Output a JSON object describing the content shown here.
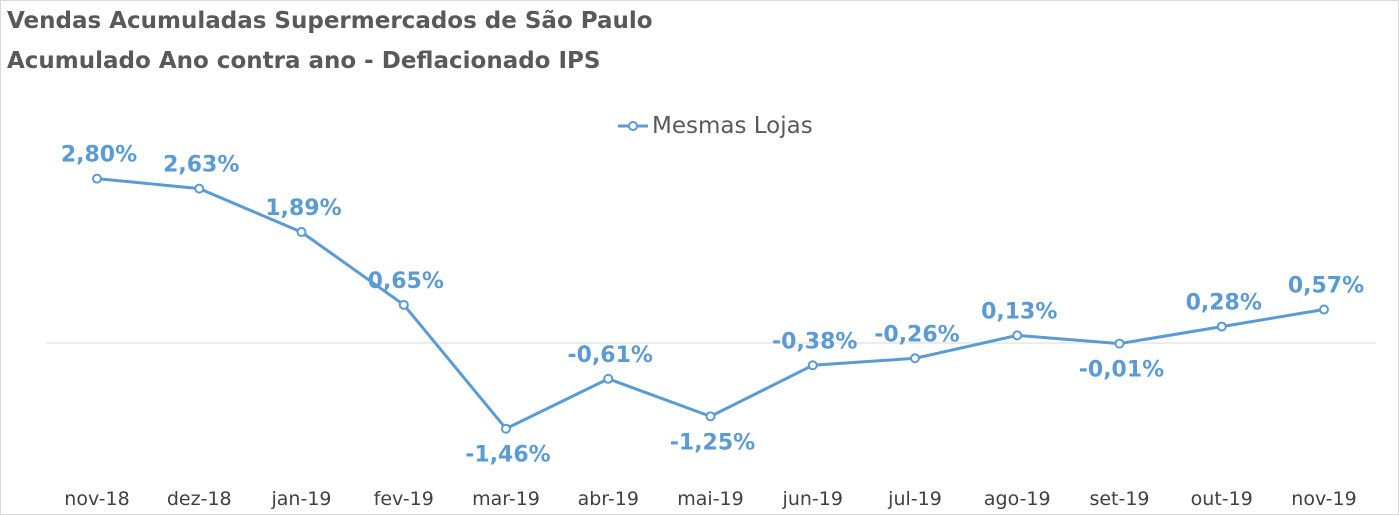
{
  "colors": {
    "series": "#5b9bd5",
    "title": "#595959",
    "axis": "#d9d9d9",
    "ticks": "#404040"
  },
  "chart_data": {
    "type": "line",
    "title": "Vendas Acumuladas Supermercados de São Paulo",
    "subtitle": "Acumulado Ano contra ano - Deflacionado IPS",
    "x": [
      "nov-18",
      "dez-18",
      "jan-19",
      "fev-19",
      "mar-19",
      "abr-19",
      "mai-19",
      "jun-19",
      "jul-19",
      "ago-19",
      "set-19",
      "out-19",
      "nov-19"
    ],
    "series": [
      {
        "name": "Mesmas Lojas",
        "values": [
          2.8,
          2.63,
          1.89,
          0.65,
          -1.46,
          -0.61,
          -1.25,
          -0.38,
          -0.26,
          0.13,
          -0.01,
          0.28,
          0.57
        ],
        "labels": [
          "2,80%",
          "2,63%",
          "1,89%",
          "0,65%",
          "-1,46%",
          "-0,61%",
          "-1,25%",
          "-0,38%",
          "-0,26%",
          "0,13%",
          "-0,01%",
          "0,28%",
          "0,57%"
        ]
      }
    ],
    "legend": "top-center",
    "grid": false,
    "marker": "circle"
  }
}
